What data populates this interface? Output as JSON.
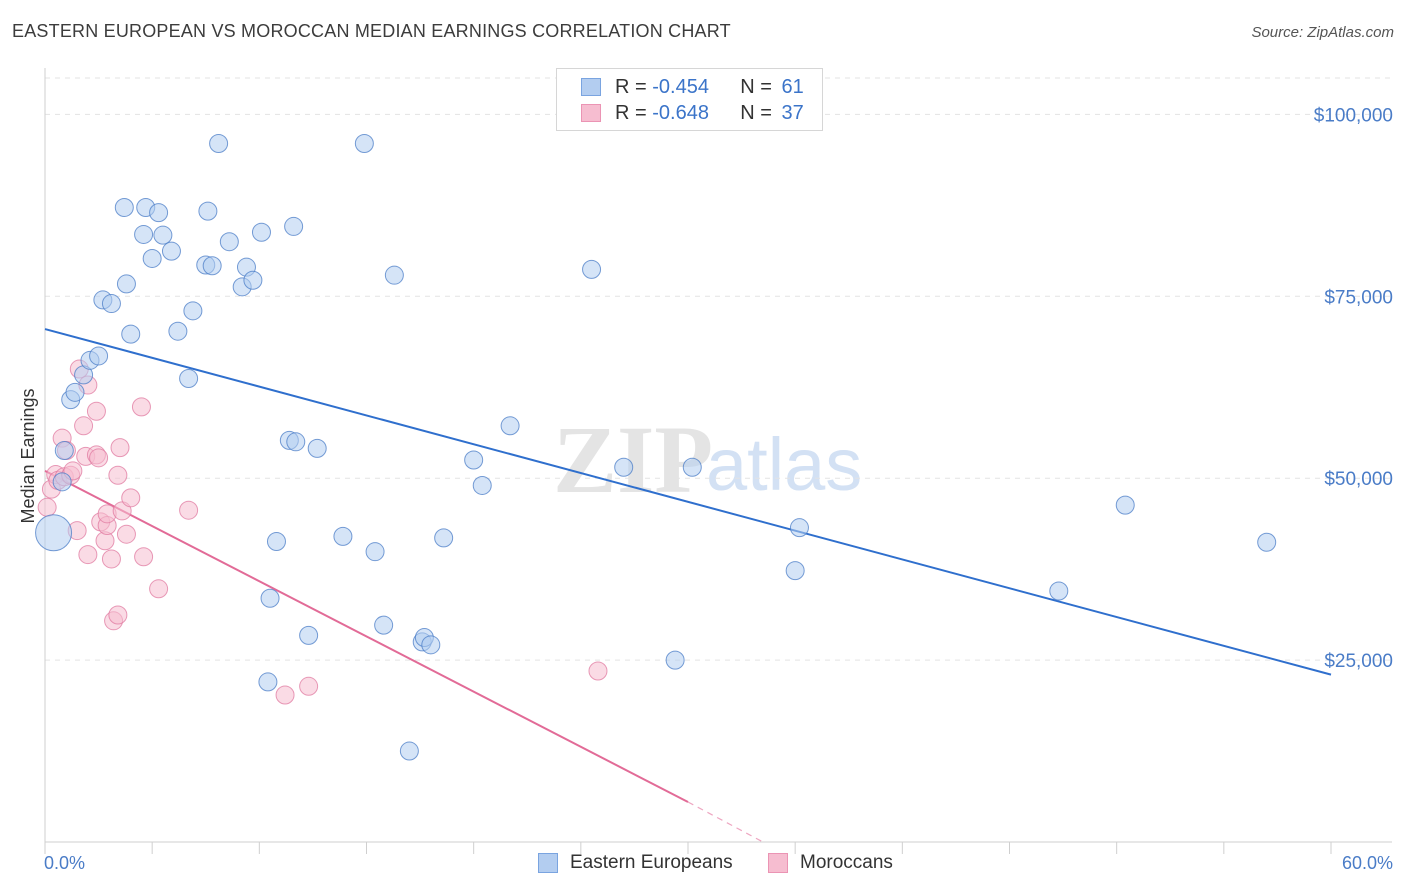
{
  "header": {
    "title": "EASTERN EUROPEAN VS MOROCCAN MEDIAN EARNINGS CORRELATION CHART",
    "source": "Source: ZipAtlas.com"
  },
  "colors": {
    "blue": "#4a7cc7",
    "blue_fill": "#b3cdf0",
    "blue_line": "#2f6fcd",
    "pink": "#e07aa0",
    "pink_fill": "#f6bdd0",
    "pink_line": "#e26b97"
  },
  "legend": {
    "rows": [
      {
        "r_label": "R = ",
        "r_value": "-0.454",
        "n_label": "N = ",
        "n_value": "61"
      },
      {
        "r_label": "R = ",
        "r_value": "-0.648",
        "n_label": "N = ",
        "n_value": "37"
      }
    ]
  },
  "watermark": {
    "zip": "ZIP",
    "atlas": "atlas"
  },
  "chart_data": {
    "type": "scatter",
    "title": "EASTERN EUROPEAN VS MOROCCAN MEDIAN EARNINGS CORRELATION CHART",
    "xlabel": "",
    "ylabel": "Median Earnings",
    "xlim": [
      0,
      60
    ],
    "ylim": [
      0,
      105000
    ],
    "x_tick_labels": [
      "0.0%",
      "60.0%"
    ],
    "y_ticks": [
      {
        "value": 25000,
        "label": "$25,000"
      },
      {
        "value": 50000,
        "label": "$50,000"
      },
      {
        "value": 75000,
        "label": "$75,000"
      },
      {
        "value": 100000,
        "label": "$100,000"
      }
    ],
    "series": [
      {
        "name": "Eastern Europeans",
        "color": "#4a7cc7",
        "trend": {
          "x0": 0,
          "y0": 70500,
          "x1": 60,
          "y1": 23000
        },
        "points": [
          {
            "x": 0.4,
            "y": 42500,
            "big": true
          },
          {
            "x": 0.8,
            "y": 49500
          },
          {
            "x": 0.9,
            "y": 53800
          },
          {
            "x": 1.2,
            "y": 60800
          },
          {
            "x": 1.4,
            "y": 61800
          },
          {
            "x": 1.8,
            "y": 64200
          },
          {
            "x": 2.1,
            "y": 66200
          },
          {
            "x": 2.5,
            "y": 66800
          },
          {
            "x": 2.7,
            "y": 74500
          },
          {
            "x": 3.1,
            "y": 74000
          },
          {
            "x": 3.7,
            "y": 87200
          },
          {
            "x": 3.8,
            "y": 76700
          },
          {
            "x": 4.0,
            "y": 69800
          },
          {
            "x": 4.6,
            "y": 83500
          },
          {
            "x": 4.7,
            "y": 87200
          },
          {
            "x": 5.0,
            "y": 80200
          },
          {
            "x": 5.3,
            "y": 86500
          },
          {
            "x": 5.5,
            "y": 83400
          },
          {
            "x": 5.9,
            "y": 81200
          },
          {
            "x": 6.2,
            "y": 70200
          },
          {
            "x": 6.7,
            "y": 63700
          },
          {
            "x": 6.9,
            "y": 73000
          },
          {
            "x": 7.5,
            "y": 79300
          },
          {
            "x": 7.6,
            "y": 86700
          },
          {
            "x": 7.8,
            "y": 79200
          },
          {
            "x": 8.1,
            "y": 96000
          },
          {
            "x": 8.6,
            "y": 82500
          },
          {
            "x": 9.2,
            "y": 76300
          },
          {
            "x": 9.4,
            "y": 79000
          },
          {
            "x": 9.7,
            "y": 77200
          },
          {
            "x": 10.1,
            "y": 83800
          },
          {
            "x": 10.5,
            "y": 33500
          },
          {
            "x": 10.4,
            "y": 22000
          },
          {
            "x": 10.8,
            "y": 41300
          },
          {
            "x": 11.4,
            "y": 55200
          },
          {
            "x": 11.6,
            "y": 84600
          },
          {
            "x": 11.7,
            "y": 55000
          },
          {
            "x": 12.3,
            "y": 28400
          },
          {
            "x": 12.7,
            "y": 54100
          },
          {
            "x": 13.9,
            "y": 42000
          },
          {
            "x": 14.9,
            "y": 96000
          },
          {
            "x": 15.4,
            "y": 39900
          },
          {
            "x": 15.8,
            "y": 29800
          },
          {
            "x": 16.3,
            "y": 77900
          },
          {
            "x": 17.0,
            "y": 12500
          },
          {
            "x": 17.6,
            "y": 27500
          },
          {
            "x": 17.7,
            "y": 28100
          },
          {
            "x": 18.0,
            "y": 27100
          },
          {
            "x": 18.6,
            "y": 41800
          },
          {
            "x": 20.0,
            "y": 52500
          },
          {
            "x": 20.4,
            "y": 49000
          },
          {
            "x": 21.7,
            "y": 57200
          },
          {
            "x": 25.5,
            "y": 78700
          },
          {
            "x": 27.0,
            "y": 51500
          },
          {
            "x": 29.4,
            "y": 25000
          },
          {
            "x": 30.2,
            "y": 51500
          },
          {
            "x": 35.0,
            "y": 37300
          },
          {
            "x": 35.2,
            "y": 43200
          },
          {
            "x": 47.3,
            "y": 34500
          },
          {
            "x": 50.4,
            "y": 46300
          },
          {
            "x": 57.0,
            "y": 41200
          }
        ]
      },
      {
        "name": "Moroccans",
        "color": "#e07aa0",
        "trend": {
          "x0": 0,
          "y0": 51000,
          "x1": 30,
          "y1": 5500,
          "dashed_to": {
            "x": 33.5,
            "y": 0
          }
        },
        "points": [
          {
            "x": 0.1,
            "y": 46000
          },
          {
            "x": 0.3,
            "y": 48500
          },
          {
            "x": 0.5,
            "y": 50500
          },
          {
            "x": 0.6,
            "y": 49700
          },
          {
            "x": 0.8,
            "y": 55500
          },
          {
            "x": 0.9,
            "y": 50200
          },
          {
            "x": 1.0,
            "y": 53800
          },
          {
            "x": 1.2,
            "y": 50400
          },
          {
            "x": 1.3,
            "y": 51000
          },
          {
            "x": 1.5,
            "y": 42800
          },
          {
            "x": 1.6,
            "y": 65000
          },
          {
            "x": 1.8,
            "y": 57200
          },
          {
            "x": 1.9,
            "y": 53000
          },
          {
            "x": 2.0,
            "y": 62800
          },
          {
            "x": 2.0,
            "y": 39500
          },
          {
            "x": 2.4,
            "y": 53200
          },
          {
            "x": 2.4,
            "y": 59200
          },
          {
            "x": 2.5,
            "y": 52800
          },
          {
            "x": 2.6,
            "y": 44000
          },
          {
            "x": 2.8,
            "y": 41400
          },
          {
            "x": 2.9,
            "y": 43500
          },
          {
            "x": 2.9,
            "y": 45100
          },
          {
            "x": 3.1,
            "y": 38900
          },
          {
            "x": 3.2,
            "y": 30400
          },
          {
            "x": 3.4,
            "y": 31200
          },
          {
            "x": 3.4,
            "y": 50400
          },
          {
            "x": 3.5,
            "y": 54200
          },
          {
            "x": 3.6,
            "y": 45500
          },
          {
            "x": 3.8,
            "y": 42300
          },
          {
            "x": 4.0,
            "y": 47300
          },
          {
            "x": 4.5,
            "y": 59800
          },
          {
            "x": 4.6,
            "y": 39200
          },
          {
            "x": 5.3,
            "y": 34800
          },
          {
            "x": 6.7,
            "y": 45600
          },
          {
            "x": 11.2,
            "y": 20200
          },
          {
            "x": 12.3,
            "y": 21400
          },
          {
            "x": 25.8,
            "y": 23500
          }
        ]
      }
    ]
  }
}
